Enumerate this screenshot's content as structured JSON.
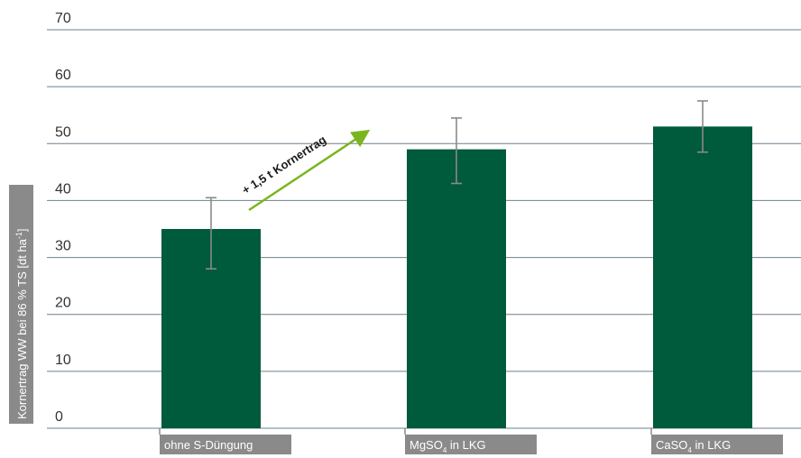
{
  "chart_data": {
    "type": "bar",
    "categories": [
      "ohne S-Düngung",
      "MgSO4 in LKG",
      "CaSO4 in LKG"
    ],
    "category_labels": [
      {
        "main": "ohne S-Düngung",
        "sub": "",
        "rest": ""
      },
      {
        "main": "MgSO",
        "sub": "4",
        "rest": " in LKG"
      },
      {
        "main": "CaSO",
        "sub": "4",
        "rest": " in LKG"
      }
    ],
    "values": [
      35,
      49,
      53
    ],
    "error_low": [
      28,
      43,
      48.5
    ],
    "error_high": [
      40.5,
      54.5,
      57.5
    ],
    "ylim": [
      0,
      70
    ],
    "yticks": [
      0,
      10,
      20,
      30,
      40,
      50,
      60,
      70
    ],
    "ylabel": {
      "main": "Kornertrag WW bei 86 % TS [dt ha",
      "sup": "-1",
      "end": "]"
    },
    "annotation": "+ 1,5 t Kornertrag",
    "grid": true,
    "colors": {
      "bar": "#005a3c",
      "grid": "#6e7f8c",
      "error": "#8a8a8a",
      "label_bg": "#8a8a8a",
      "arrow": "#7ab51d"
    }
  }
}
